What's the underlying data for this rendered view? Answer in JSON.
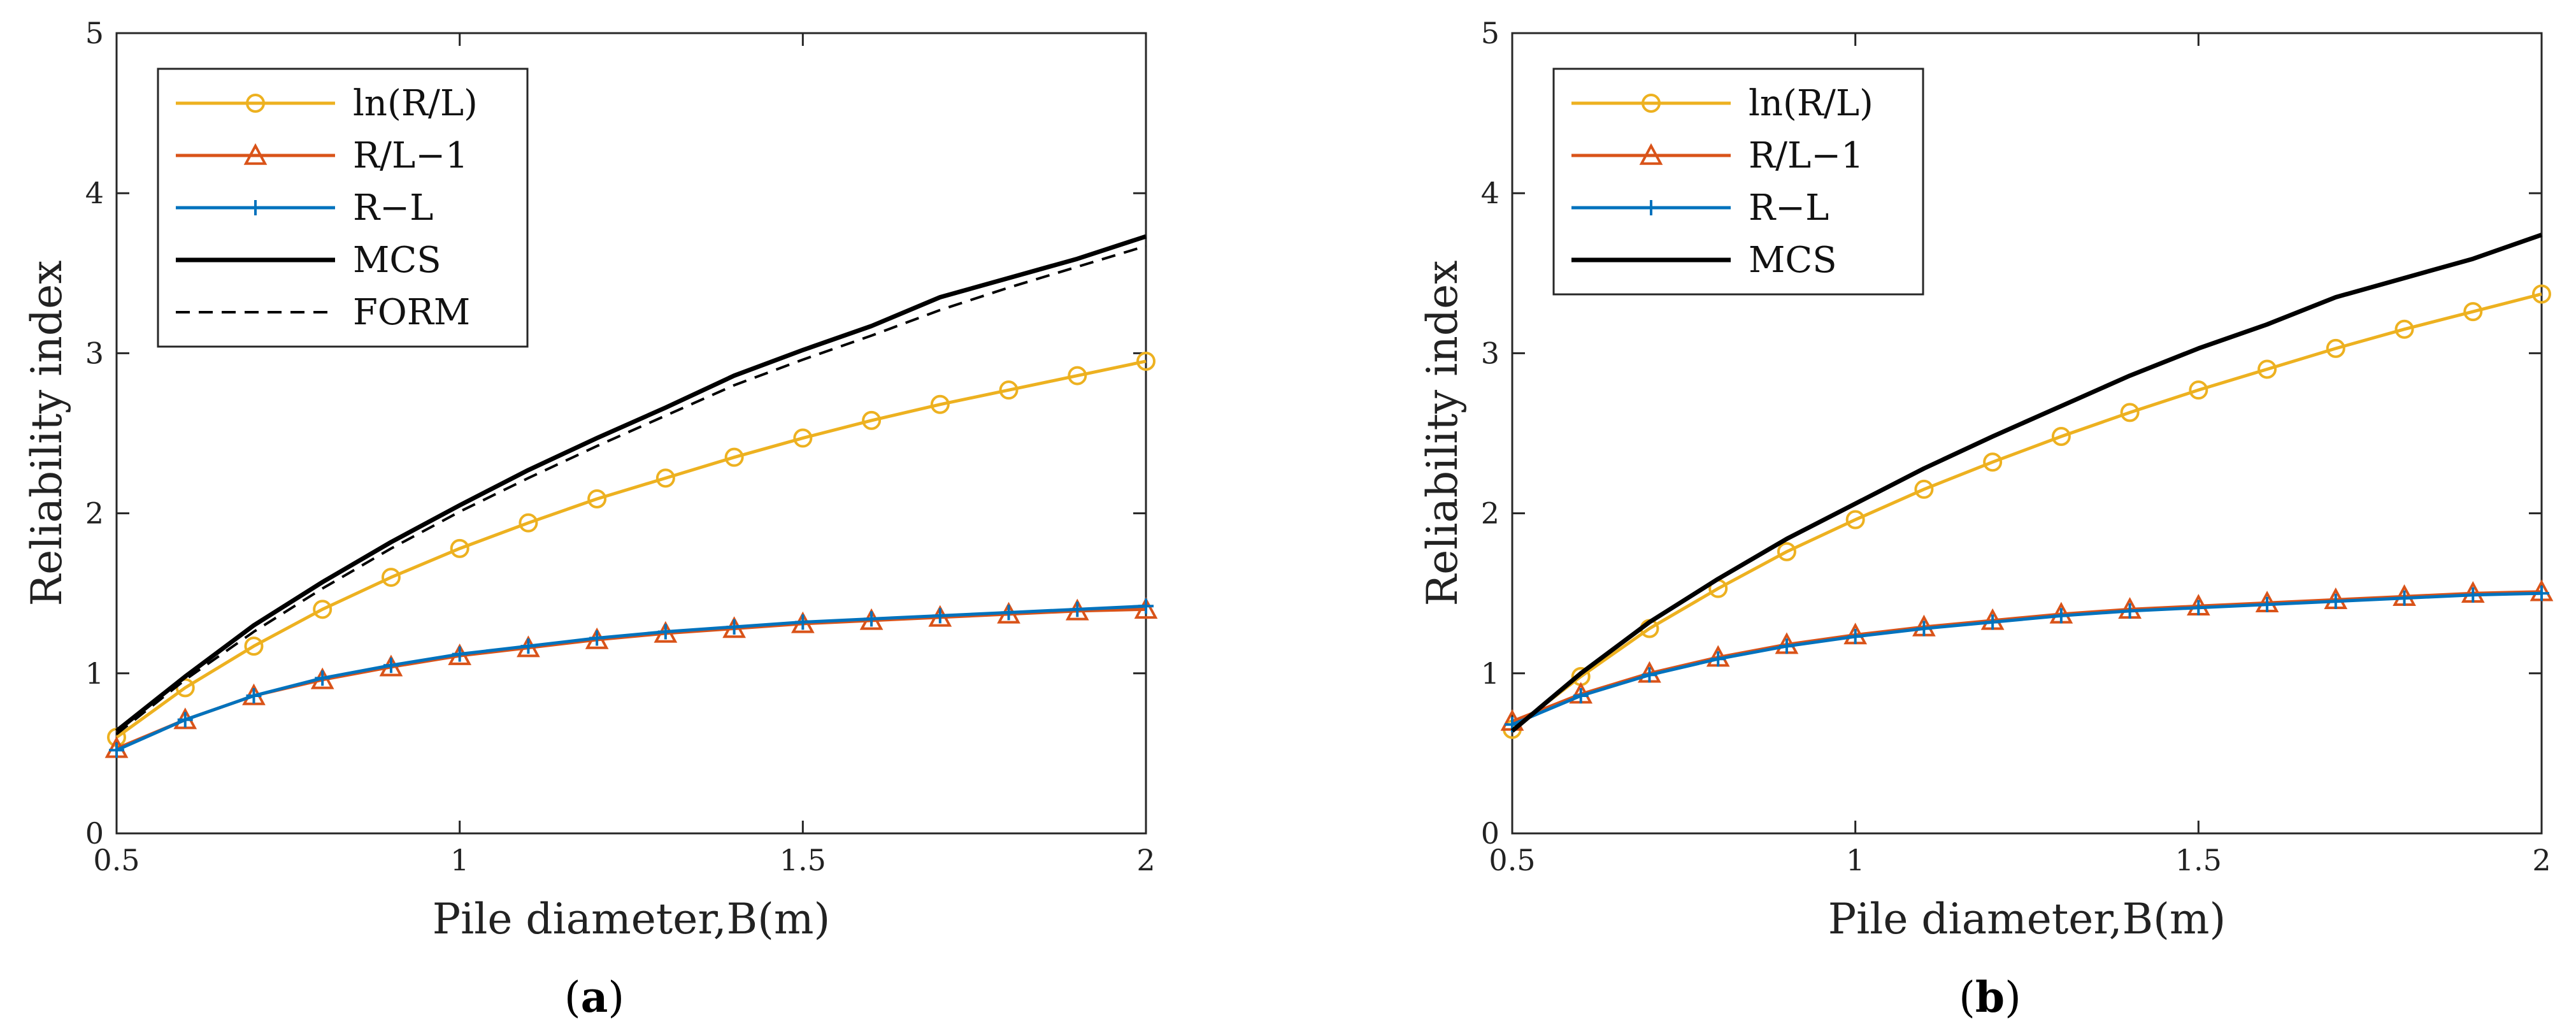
{
  "colors": {
    "ln_series": "#EDB120",
    "rl1_series": "#D95319",
    "rminusl_series": "#0072BD",
    "mcs_series": "#000000",
    "form_series": "#000000"
  },
  "panels": [
    {
      "label_letter": "a",
      "label_open": "(",
      "label_close": ")"
    },
    {
      "label_letter": "b",
      "label_open": "(",
      "label_close": ")"
    }
  ],
  "chart_data": [
    {
      "type": "line",
      "panel": "a",
      "xlabel": "Pile diameter,B(m)",
      "ylabel": "Reliability index",
      "xlim": [
        0.5,
        2
      ],
      "ylim": [
        0,
        5
      ],
      "x_ticks": [
        0.5,
        1,
        1.5,
        2
      ],
      "x_tick_labels": [
        "0.5",
        "1",
        "1.5",
        "2"
      ],
      "y_ticks": [
        0,
        1,
        2,
        3,
        4,
        5
      ],
      "y_tick_labels": [
        "0",
        "1",
        "2",
        "3",
        "4",
        "5"
      ],
      "legend_position": "top-left",
      "x": [
        0.5,
        0.6,
        0.7,
        0.8,
        0.9,
        1.0,
        1.1,
        1.2,
        1.3,
        1.4,
        1.5,
        1.6,
        1.7,
        1.8,
        1.9,
        2.0
      ],
      "series": [
        {
          "name": "ln(R/L)",
          "marker": "circle",
          "color_key": "ln_series",
          "dash": "solid",
          "values": [
            0.6,
            0.91,
            1.17,
            1.4,
            1.6,
            1.78,
            1.94,
            2.09,
            2.22,
            2.35,
            2.47,
            2.58,
            2.68,
            2.77,
            2.86,
            2.95
          ]
        },
        {
          "name": "R/L−1",
          "marker": "triangle",
          "color_key": "rl1_series",
          "dash": "solid",
          "values": [
            0.53,
            0.71,
            0.86,
            0.96,
            1.04,
            1.11,
            1.16,
            1.21,
            1.25,
            1.28,
            1.31,
            1.33,
            1.35,
            1.37,
            1.39,
            1.4
          ]
        },
        {
          "name": "R−L",
          "marker": "plus",
          "color_key": "rminusl_series",
          "dash": "solid",
          "values": [
            0.52,
            0.71,
            0.86,
            0.97,
            1.05,
            1.12,
            1.17,
            1.22,
            1.26,
            1.29,
            1.32,
            1.34,
            1.36,
            1.38,
            1.4,
            1.42
          ]
        },
        {
          "name": "MCS",
          "marker": "none",
          "color_key": "mcs_series",
          "dash": "solid",
          "values": [
            0.64,
            0.98,
            1.3,
            1.57,
            1.82,
            2.05,
            2.27,
            2.47,
            2.66,
            2.86,
            3.02,
            3.17,
            3.35,
            3.47,
            3.59,
            3.73
          ]
        },
        {
          "name": "FORM",
          "marker": "none",
          "color_key": "form_series",
          "dash": "dashed",
          "values": [
            0.62,
            0.96,
            1.26,
            1.53,
            1.78,
            2.01,
            2.22,
            2.42,
            2.61,
            2.8,
            2.96,
            3.11,
            3.27,
            3.41,
            3.54,
            3.67
          ]
        }
      ]
    },
    {
      "type": "line",
      "panel": "b",
      "xlabel": "Pile diameter,B(m)",
      "ylabel": "Reliability index",
      "xlim": [
        0.5,
        2
      ],
      "ylim": [
        0,
        5
      ],
      "x_ticks": [
        0.5,
        1,
        1.5,
        2
      ],
      "x_tick_labels": [
        "0.5",
        "1",
        "1.5",
        "2"
      ],
      "y_ticks": [
        0,
        1,
        2,
        3,
        4,
        5
      ],
      "y_tick_labels": [
        "0",
        "1",
        "2",
        "3",
        "4",
        "5"
      ],
      "legend_position": "top-left",
      "x": [
        0.5,
        0.6,
        0.7,
        0.8,
        0.9,
        1.0,
        1.1,
        1.2,
        1.3,
        1.4,
        1.5,
        1.6,
        1.7,
        1.8,
        1.9,
        2.0
      ],
      "series": [
        {
          "name": "ln(R/L)",
          "marker": "circle",
          "color_key": "ln_series",
          "dash": "solid",
          "values": [
            0.65,
            0.98,
            1.28,
            1.53,
            1.76,
            1.96,
            2.15,
            2.32,
            2.48,
            2.63,
            2.77,
            2.9,
            3.03,
            3.15,
            3.26,
            3.37
          ]
        },
        {
          "name": "R/L−1",
          "marker": "triangle",
          "color_key": "rl1_series",
          "dash": "solid",
          "values": [
            0.7,
            0.87,
            1.0,
            1.1,
            1.18,
            1.24,
            1.29,
            1.33,
            1.37,
            1.4,
            1.42,
            1.44,
            1.46,
            1.48,
            1.5,
            1.51
          ]
        },
        {
          "name": "R−L",
          "marker": "plus",
          "color_key": "rminusl_series",
          "dash": "solid",
          "values": [
            0.68,
            0.86,
            0.99,
            1.09,
            1.17,
            1.23,
            1.28,
            1.32,
            1.36,
            1.39,
            1.41,
            1.43,
            1.45,
            1.47,
            1.49,
            1.5
          ]
        },
        {
          "name": "MCS",
          "marker": "none",
          "color_key": "mcs_series",
          "dash": "solid",
          "values": [
            0.64,
            1.0,
            1.32,
            1.59,
            1.84,
            2.06,
            2.28,
            2.48,
            2.67,
            2.86,
            3.03,
            3.18,
            3.35,
            3.47,
            3.59,
            3.74
          ]
        }
      ]
    }
  ]
}
